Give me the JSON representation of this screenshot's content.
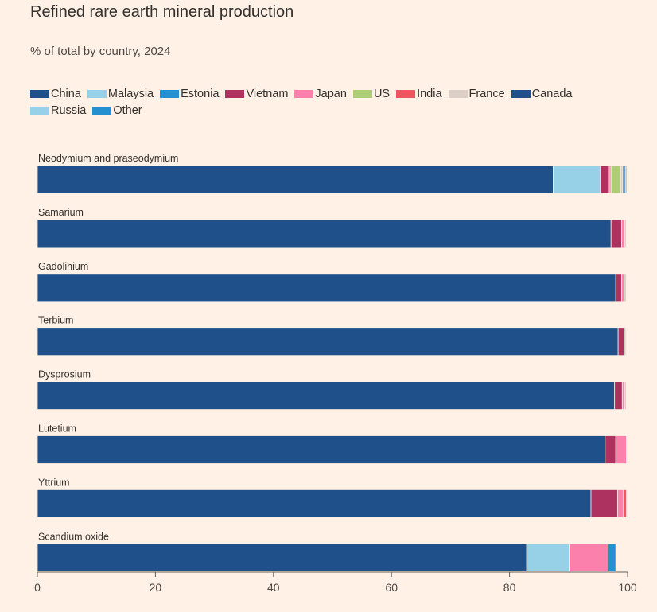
{
  "chart_data": {
    "type": "bar",
    "orientation": "horizontal",
    "stacked": true,
    "title": "Refined rare earth mineral production",
    "subtitle": "% of total by country, 2024",
    "xlim": [
      0,
      100
    ],
    "x_ticks": [
      0,
      20,
      40,
      60,
      80,
      100
    ],
    "legend_placement": "top-left",
    "categories": [
      "Neodymium and praseodymium",
      "Samarium",
      "Gadolinium",
      "Terbium",
      "Dysprosium",
      "Lutetium",
      "Yttrium",
      "Scandium oxide"
    ],
    "series": [
      {
        "name": "China",
        "color": "#1f5089",
        "values": [
          87.4,
          97.2,
          98.0,
          98.4,
          97.8,
          96.2,
          93.8,
          82.9
        ]
      },
      {
        "name": "Malaysia",
        "color": "#96d1e8",
        "values": [
          8.0,
          0,
          0,
          0,
          0,
          0,
          0,
          7.2
        ]
      },
      {
        "name": "Estonia",
        "color": "#2490cf",
        "values": [
          0,
          0,
          0,
          0,
          0,
          0,
          0,
          0
        ]
      },
      {
        "name": "Vietnam",
        "color": "#ad3260",
        "values": [
          1.5,
          1.8,
          1.0,
          1.0,
          1.3,
          1.8,
          4.5,
          0
        ]
      },
      {
        "name": "Japan",
        "color": "#fb81ac",
        "values": [
          0.3,
          0.5,
          0.4,
          0.2,
          0.4,
          1.8,
          1.0,
          6.6
        ]
      },
      {
        "name": "US",
        "color": "#afcc77",
        "values": [
          1.6,
          0,
          0,
          0,
          0,
          0,
          0,
          0
        ]
      },
      {
        "name": "India",
        "color": "#ee5660",
        "values": [
          0,
          0,
          0,
          0,
          0,
          0,
          0.5,
          0
        ]
      },
      {
        "name": "France",
        "color": "#dbcfc8",
        "values": [
          0.4,
          0.3,
          0.4,
          0.2,
          0.3,
          0,
          0,
          0
        ]
      },
      {
        "name": "Canada",
        "color": "#1f5089",
        "values": [
          0.4,
          0,
          0,
          0,
          0,
          0,
          0,
          0
        ]
      },
      {
        "name": "Russia",
        "color": "#96d1e8",
        "values": [
          0.3,
          0,
          0,
          0,
          0,
          0,
          0,
          0
        ]
      },
      {
        "name": "Other",
        "color": "#2490cf",
        "values": [
          0,
          0,
          0,
          0,
          0,
          0,
          0,
          1.3
        ]
      }
    ]
  }
}
